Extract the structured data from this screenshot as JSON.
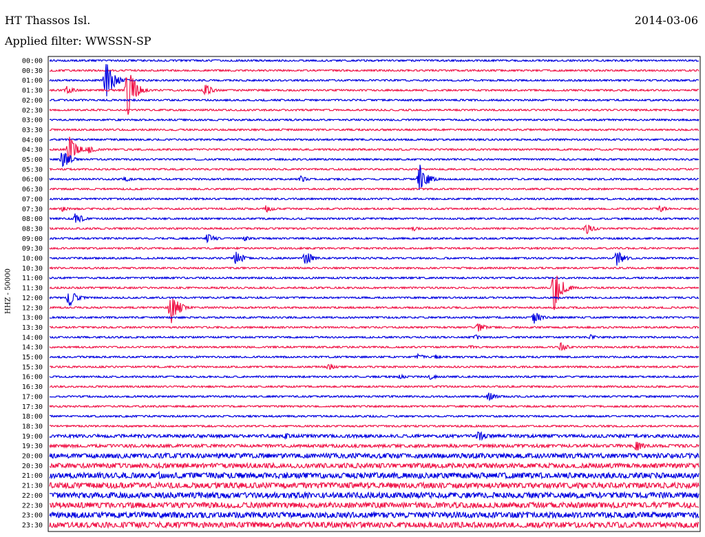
{
  "station": "HT Thassos Isl.",
  "date": "2014-03-06",
  "filter_label": "Applied filter: WWSSN-SP",
  "channel_label": "HHZ - 50000",
  "colors": {
    "blue": "#0000e0",
    "red": "#f01448"
  },
  "chart_data": {
    "type": "line",
    "title": "HT Thassos Isl.",
    "subtitle": "Applied filter: WWSSN-SP",
    "ylabel": "HHZ - 50000",
    "legend": "none",
    "grid": false,
    "row_labels": [
      "00:00",
      "00:30",
      "01:00",
      "01:30",
      "02:00",
      "02:30",
      "03:00",
      "03:30",
      "04:00",
      "04:30",
      "05:00",
      "05:30",
      "06:00",
      "06:30",
      "07:00",
      "07:30",
      "08:00",
      "08:30",
      "09:00",
      "09:30",
      "10:00",
      "10:30",
      "11:00",
      "11:30",
      "12:00",
      "12:30",
      "13:00",
      "13:30",
      "14:00",
      "14:30",
      "15:00",
      "15:30",
      "16:00",
      "16:30",
      "17:00",
      "17:30",
      "18:00",
      "18:30",
      "19:00",
      "19:30",
      "20:00",
      "20:30",
      "21:00",
      "21:30",
      "22:00",
      "22:30",
      "23:00",
      "23:30"
    ],
    "row_minutes": 30,
    "events": [
      {
        "row": 2,
        "minute": 2.6,
        "amplitude": 30
      },
      {
        "row": 3,
        "minute": 0.8,
        "amplitude": 7
      },
      {
        "row": 3,
        "minute": 3.6,
        "amplitude": 40
      },
      {
        "row": 3,
        "minute": 7.2,
        "amplitude": 9
      },
      {
        "row": 9,
        "minute": 0.9,
        "amplitude": 22
      },
      {
        "row": 9,
        "minute": 1.8,
        "amplitude": 6
      },
      {
        "row": 10,
        "minute": 0.6,
        "amplitude": 16
      },
      {
        "row": 12,
        "minute": 17.1,
        "amplitude": 22
      },
      {
        "row": 12,
        "minute": 11.6,
        "amplitude": 5
      },
      {
        "row": 12,
        "minute": 3.5,
        "amplitude": 4
      },
      {
        "row": 15,
        "minute": 0.6,
        "amplitude": 4
      },
      {
        "row": 15,
        "minute": 10.0,
        "amplitude": 6
      },
      {
        "row": 15,
        "minute": 28.2,
        "amplitude": 5
      },
      {
        "row": 16,
        "minute": 1.2,
        "amplitude": 9
      },
      {
        "row": 17,
        "minute": 16.8,
        "amplitude": 4
      },
      {
        "row": 17,
        "minute": 24.8,
        "amplitude": 10
      },
      {
        "row": 18,
        "minute": 7.3,
        "amplitude": 8
      },
      {
        "row": 18,
        "minute": 9.0,
        "amplitude": 4
      },
      {
        "row": 20,
        "minute": 8.6,
        "amplitude": 12
      },
      {
        "row": 20,
        "minute": 11.8,
        "amplitude": 12
      },
      {
        "row": 20,
        "minute": 26.2,
        "amplitude": 12
      },
      {
        "row": 23,
        "minute": 23.3,
        "amplitude": 34
      },
      {
        "row": 24,
        "minute": 0.9,
        "amplitude": 14
      },
      {
        "row": 25,
        "minute": 5.6,
        "amplitude": 26
      },
      {
        "row": 26,
        "minute": 22.4,
        "amplitude": 10
      },
      {
        "row": 27,
        "minute": 19.8,
        "amplitude": 7
      },
      {
        "row": 28,
        "minute": 19.7,
        "amplitude": 4
      },
      {
        "row": 28,
        "minute": 25.0,
        "amplitude": 4
      },
      {
        "row": 29,
        "minute": 23.6,
        "amplitude": 7
      },
      {
        "row": 29,
        "minute": 19.4,
        "amplitude": 3
      },
      {
        "row": 30,
        "minute": 17.0,
        "amplitude": 5
      },
      {
        "row": 30,
        "minute": 17.8,
        "amplitude": 4
      },
      {
        "row": 31,
        "minute": 12.9,
        "amplitude": 6
      },
      {
        "row": 32,
        "minute": 16.2,
        "amplitude": 4
      },
      {
        "row": 32,
        "minute": 17.6,
        "amplitude": 4
      },
      {
        "row": 34,
        "minute": 20.3,
        "amplitude": 8
      },
      {
        "row": 38,
        "minute": 19.8,
        "amplitude": 9
      },
      {
        "row": 38,
        "minute": 10.9,
        "amplitude": 5
      },
      {
        "row": 39,
        "minute": 27.1,
        "amplitude": 9
      },
      {
        "row": 42,
        "minute": 5.0,
        "amplitude": 6
      },
      {
        "row": 45,
        "minute": 20.9,
        "amplitude": 5
      }
    ]
  }
}
